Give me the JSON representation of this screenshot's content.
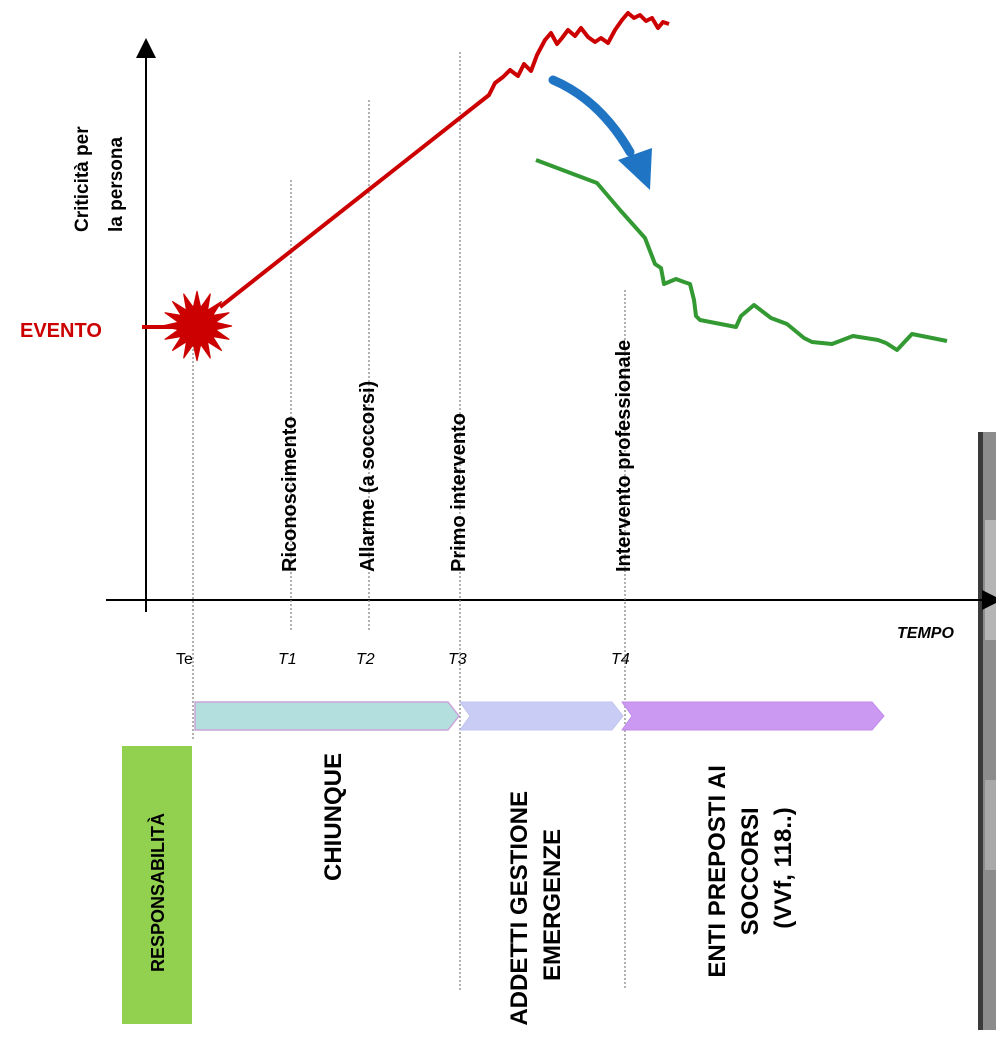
{
  "y_axis_label": [
    "Criticità per",
    "la persona"
  ],
  "x_axis_label": "TEMPO",
  "event_label": "EVENTO",
  "phases": [
    {
      "label": "Riconoscimento"
    },
    {
      "label": "Allarme (a soccorsi)"
    },
    {
      "label": "Primo intervento"
    },
    {
      "label": "Intervento professionale"
    }
  ],
  "ticks": [
    {
      "label": "Te",
      "italic": false
    },
    {
      "label": "T1",
      "italic": true
    },
    {
      "label": "T2",
      "italic": true
    },
    {
      "label": "T3",
      "italic": true
    },
    {
      "label": "T4",
      "italic": true
    }
  ],
  "responsibility": {
    "header": "RESPONSABILITÀ",
    "header_color": "#92d050",
    "groups": [
      {
        "lines": [
          "CHIUNQUE"
        ],
        "arrow_color": "#b4dfdf"
      },
      {
        "lines": [
          "ADDETTI GESTIONE",
          "EMERGENZE"
        ],
        "arrow_color": "#c9cdf6"
      },
      {
        "lines": [
          "ENTI PREPOSTI AI",
          "SOCCORSI",
          "(VVf, 118..)"
        ],
        "arrow_color": "#cc99f2"
      }
    ]
  },
  "colors": {
    "criticality_curve": "#cc0000",
    "recovery_curve": "#339933",
    "intervention_arrow": "#1f74c4",
    "event_burst": "#cc0000"
  }
}
